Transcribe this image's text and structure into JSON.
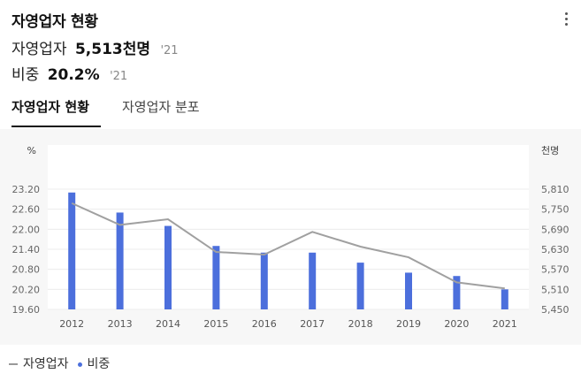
{
  "header": {
    "title": "자영업자 현황",
    "menu_icon": "more-vertical-icon"
  },
  "stats": [
    {
      "label": "자영업자",
      "value": "5,513천명",
      "year": "'21"
    },
    {
      "label": "비중",
      "value": "20.2%",
      "year": "'21"
    }
  ],
  "tabs": [
    {
      "label": "자영업자 현황",
      "active": true
    },
    {
      "label": "자영업자 분포",
      "active": false
    }
  ],
  "legend": [
    {
      "label": "자영업자",
      "marker": "line",
      "color": "#999999"
    },
    {
      "label": "비중",
      "marker": "dot",
      "color": "#4c6fdc"
    }
  ],
  "colors": {
    "bar": "#4c6fdc",
    "line": "#a0a0a0",
    "tab_underline": "#111111"
  },
  "chart_data": {
    "type": "bar+line",
    "categories": [
      "2012",
      "2013",
      "2014",
      "2015",
      "2016",
      "2017",
      "2018",
      "2019",
      "2020",
      "2021"
    ],
    "left_axis": {
      "unit": "%",
      "ticks": [
        "23.20",
        "22.60",
        "22.00",
        "21.40",
        "20.80",
        "20.20",
        "19.60"
      ],
      "ylim": [
        19.6,
        23.2
      ]
    },
    "right_axis": {
      "unit": "천명",
      "ticks": [
        "5,810",
        "5,750",
        "5,690",
        "5,630",
        "5,570",
        "5,510",
        "5,450"
      ],
      "ylim": [
        5450,
        5810
      ]
    },
    "series": [
      {
        "name": "비중",
        "type": "bar",
        "axis": "left",
        "values": [
          23.1,
          22.5,
          22.1,
          21.5,
          21.3,
          21.3,
          21.0,
          20.7,
          20.6,
          20.2
        ]
      },
      {
        "name": "자영업자",
        "type": "line",
        "axis": "right",
        "values": [
          5768,
          5703,
          5720,
          5622,
          5614,
          5682,
          5638,
          5606,
          5531,
          5513
        ]
      }
    ],
    "grid": true
  }
}
